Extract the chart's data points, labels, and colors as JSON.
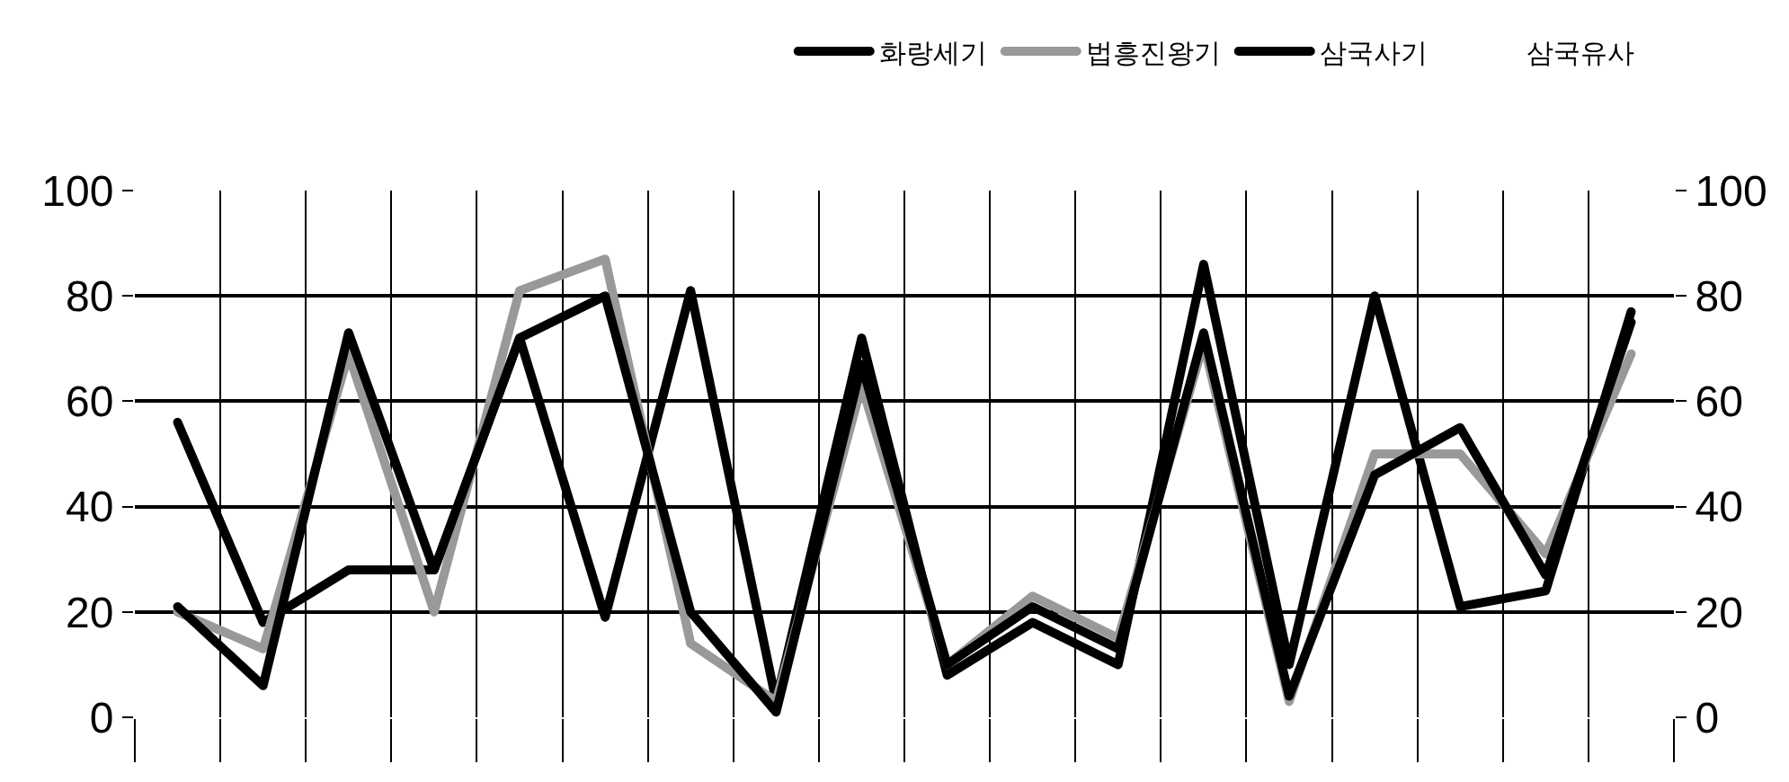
{
  "chart_data": {
    "type": "line",
    "categories": [
      null,
      null,
      null,
      null,
      null,
      null,
      null,
      null,
      null,
      null,
      null,
      null,
      null,
      null,
      null,
      null,
      null,
      null
    ],
    "series": [
      {
        "name": "화랑세기",
        "color": "#000000",
        "values": [
          56,
          18,
          28,
          28,
          72,
          19,
          81,
          3,
          72,
          8,
          18,
          10,
          86,
          10,
          80,
          21,
          24,
          77
        ]
      },
      {
        "name": "법흥진왕기",
        "color": "#999999",
        "values": [
          20,
          13,
          69,
          20,
          81,
          87,
          14,
          3,
          63,
          10,
          23,
          15,
          71,
          3,
          50,
          50,
          31,
          69
        ]
      },
      {
        "name": "삼국사기",
        "color": "#000000",
        "values": [
          21,
          6,
          73,
          28,
          72,
          80,
          20,
          1,
          67,
          10,
          21,
          13,
          73,
          4,
          46,
          55,
          27,
          75
        ]
      },
      {
        "name": "삼국유사",
        "values": [
          null,
          null,
          null,
          null,
          null,
          null,
          null,
          null,
          null,
          null,
          null,
          null,
          null,
          null,
          null,
          null,
          null,
          null
        ]
      }
    ],
    "ylim": [
      0,
      100
    ],
    "yticks": [
      0,
      20,
      40,
      60,
      80,
      100
    ],
    "y2lim": [
      0,
      100
    ],
    "y2ticks": [
      0,
      20,
      40,
      60,
      80,
      100
    ],
    "grid": true,
    "legend": "top",
    "marker": "none",
    "line_style": "solid"
  }
}
